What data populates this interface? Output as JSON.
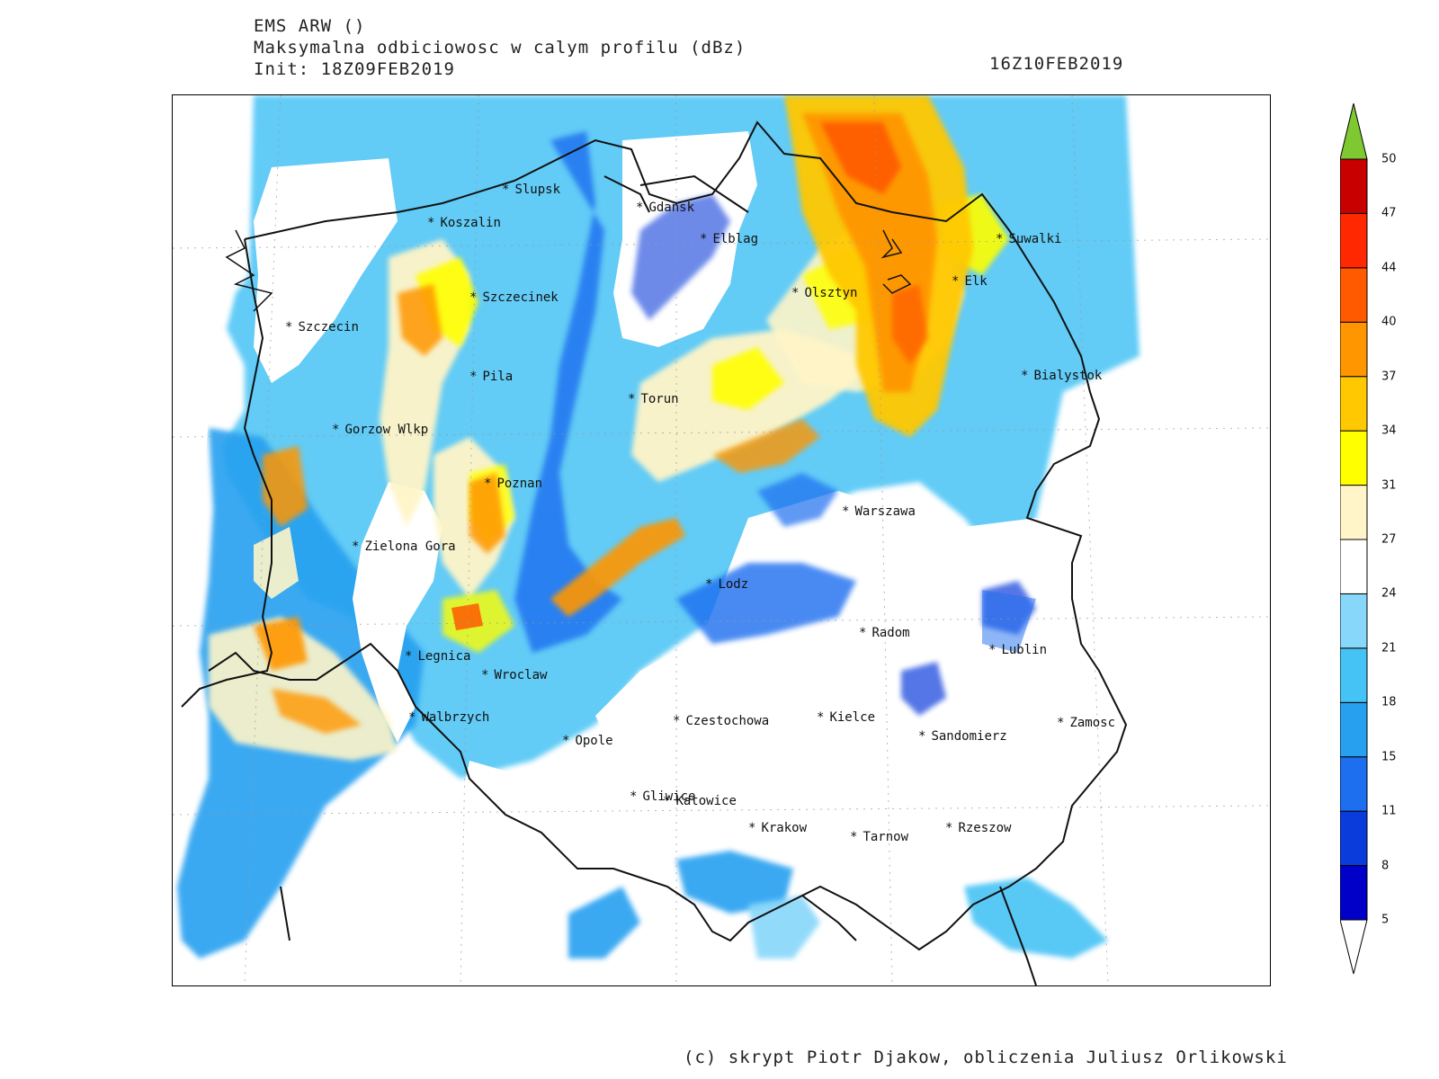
{
  "header": {
    "model": "EMS ARW ()",
    "field": "Maksymalna odbiciowosc w calym profilu (dBz)",
    "init": "Init: 18Z09FEB2019",
    "valid": "16Z10FEB2019"
  },
  "cities": [
    {
      "name": "Slupsk"
    },
    {
      "name": "Gdansk"
    },
    {
      "name": "Koszalin"
    },
    {
      "name": "Elblag"
    },
    {
      "name": "Suwalki"
    },
    {
      "name": "Elk"
    },
    {
      "name": "Olsztyn"
    },
    {
      "name": "Szczecinek"
    },
    {
      "name": "Szczecin"
    },
    {
      "name": "Pila"
    },
    {
      "name": "Torun"
    },
    {
      "name": "Bialystok"
    },
    {
      "name": "Gorzow Wlkp"
    },
    {
      "name": "Poznan"
    },
    {
      "name": "Warszawa"
    },
    {
      "name": "Zielona Gora"
    },
    {
      "name": "Lodz"
    },
    {
      "name": "Radom"
    },
    {
      "name": "Lublin"
    },
    {
      "name": "Legnica"
    },
    {
      "name": "Wroclaw"
    },
    {
      "name": "Walbrzych"
    },
    {
      "name": "Czestochowa"
    },
    {
      "name": "Kielce"
    },
    {
      "name": "Zamosc"
    },
    {
      "name": "Opole"
    },
    {
      "name": "Sandomierz"
    },
    {
      "name": "Gliwice"
    },
    {
      "name": "Katowice"
    },
    {
      "name": "Krakow"
    },
    {
      "name": "Tarnow"
    },
    {
      "name": "Rzeszow"
    }
  ],
  "legend": {
    "levels": [
      "5",
      "8",
      "11",
      "15",
      "18",
      "21",
      "24",
      "27",
      "31",
      "34",
      "37",
      "40",
      "44",
      "47",
      "50"
    ],
    "colors": [
      "#0000c8",
      "#0a3cdc",
      "#1e6ef0",
      "#28a0f0",
      "#46c3f5",
      "#87d7fa",
      "#ffffff",
      "#fff5c8",
      "#ffff00",
      "#ffc800",
      "#ff9600",
      "#ff5a00",
      "#ff2800",
      "#c80000"
    ],
    "overflow_color": "#7ec832"
  },
  "footer": "(c) skrypt Piotr Djakow, obliczenia Juliusz Orlikowski"
}
